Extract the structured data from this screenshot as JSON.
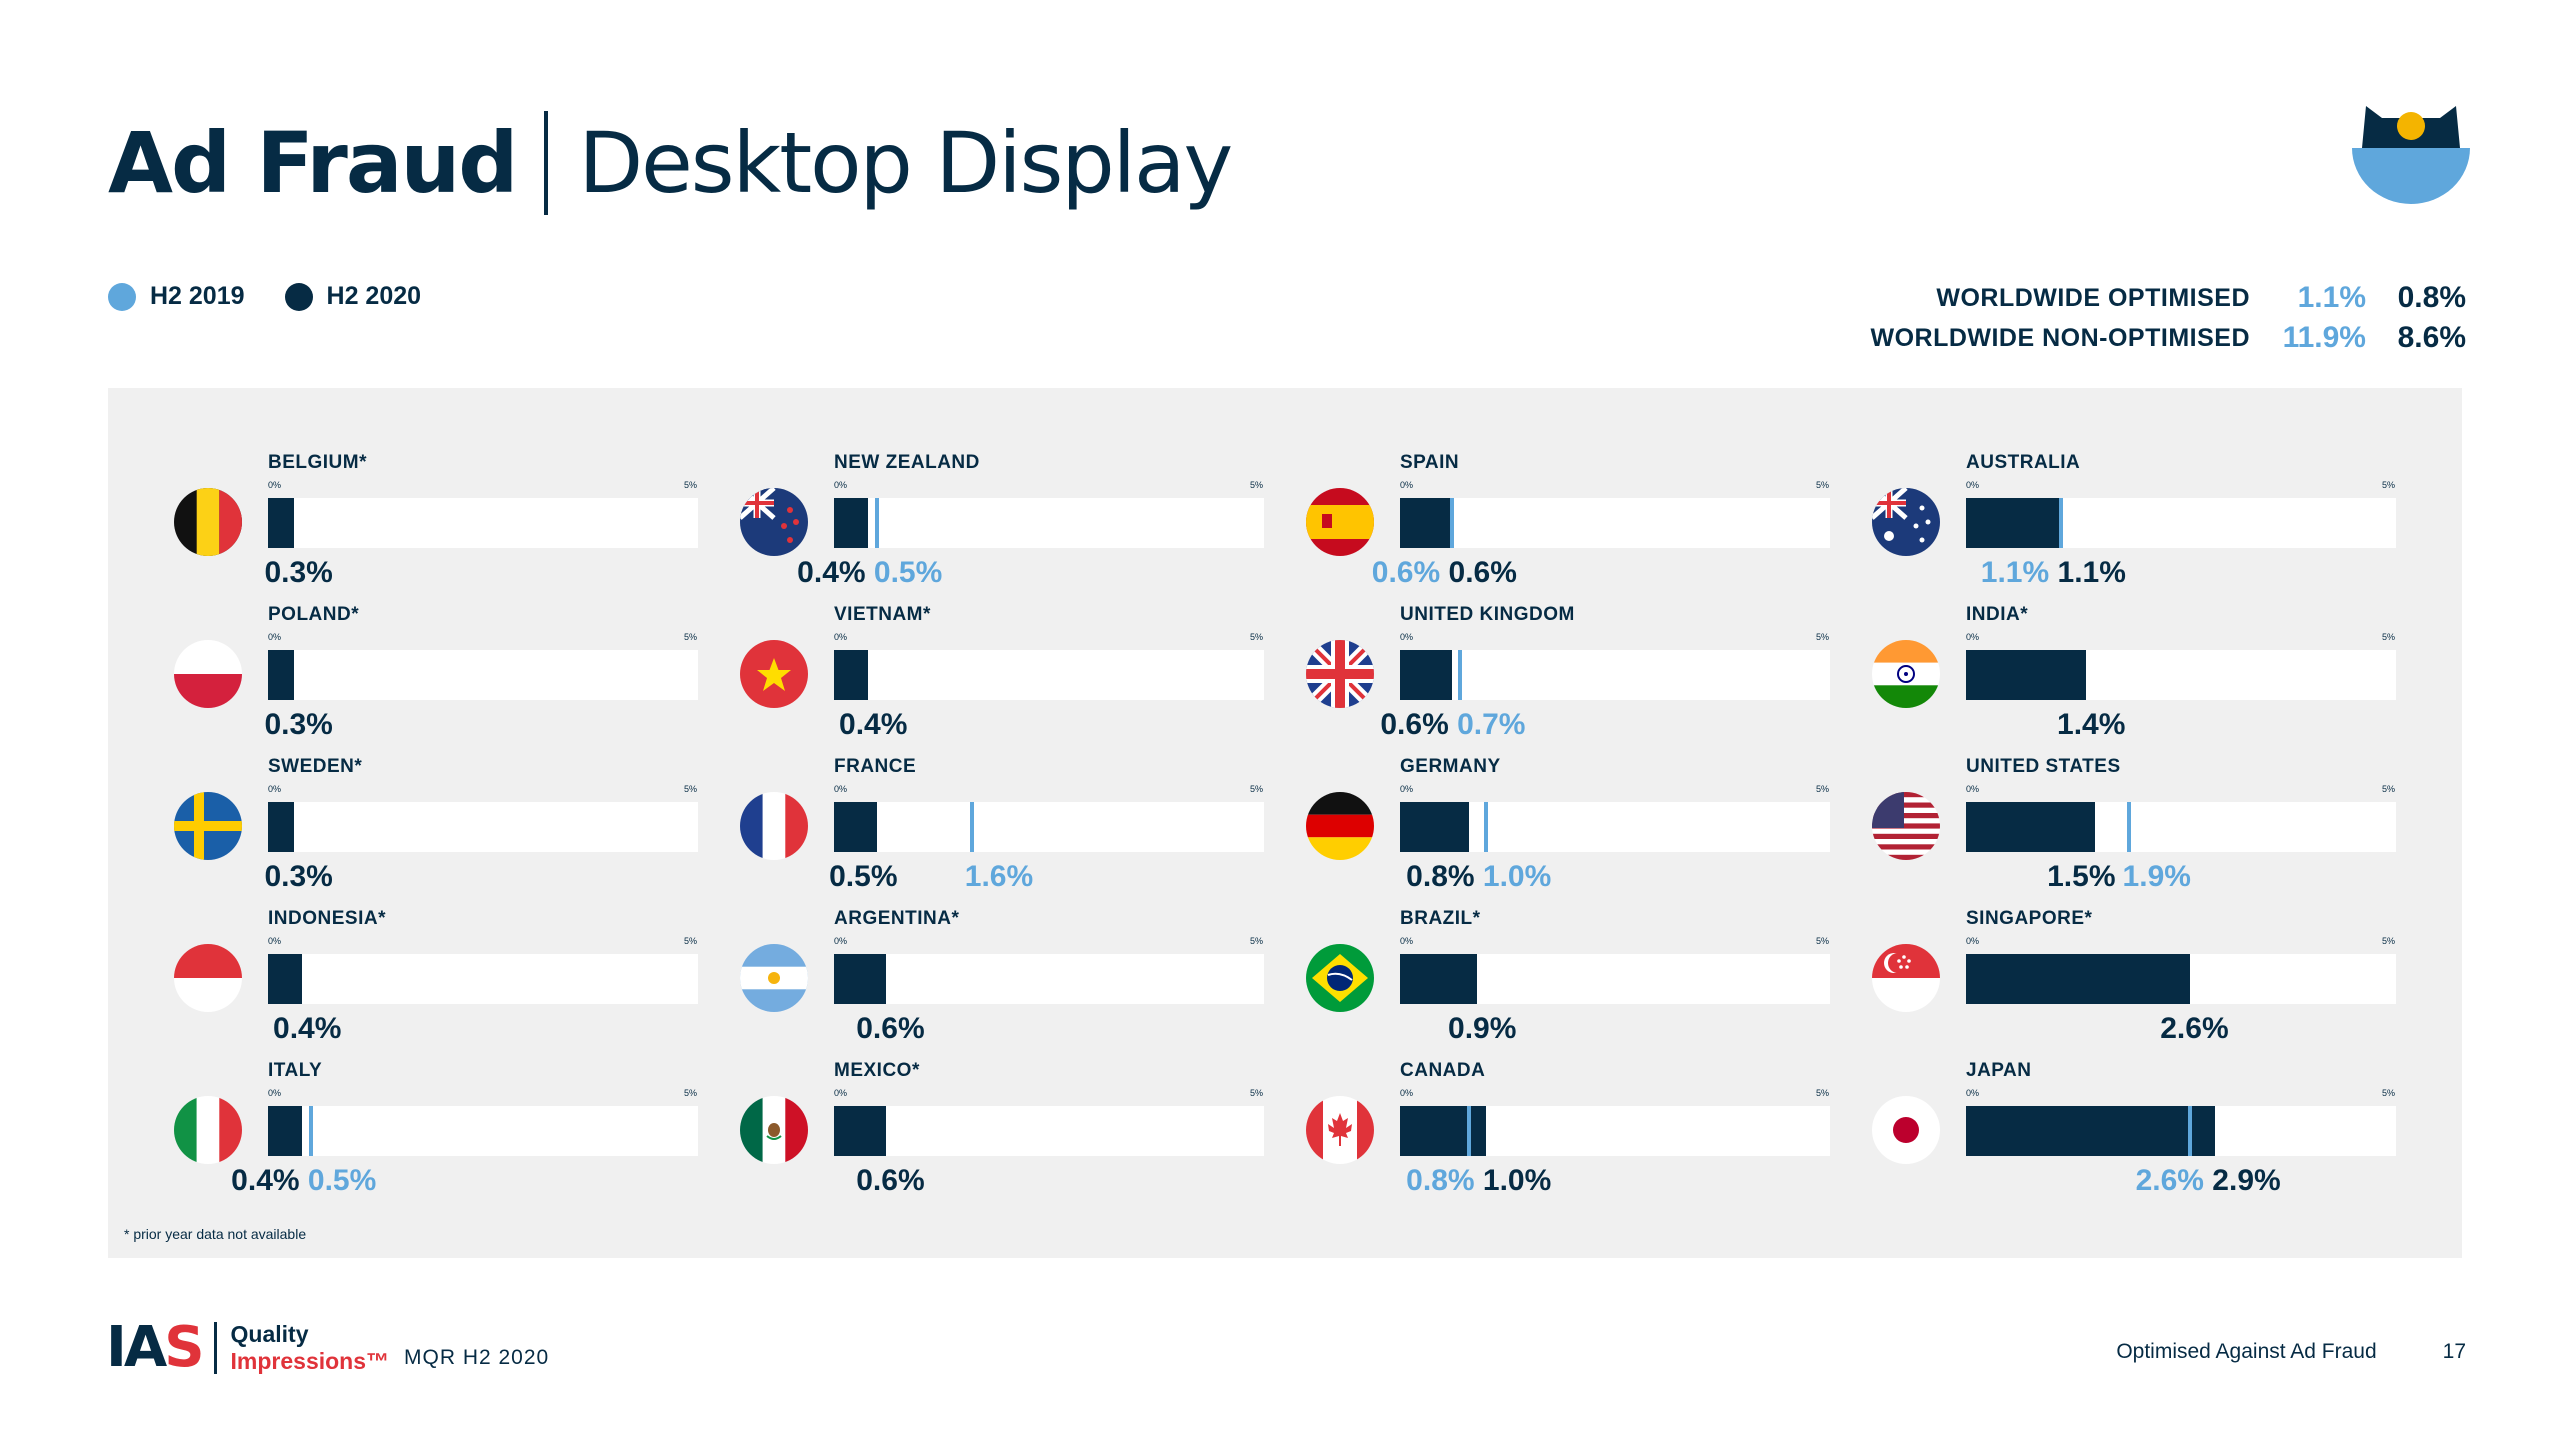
{
  "header": {
    "title_main": "Ad Fraud",
    "title_sub": "Desktop Display"
  },
  "legend": [
    {
      "label": "H2 2019",
      "color": "#5fa7dc"
    },
    {
      "label": "H2 2020",
      "color": "#062b44"
    }
  ],
  "worldwide": [
    {
      "label": "WORLDWIDE OPTIMISED",
      "h2_2019": "1.1%",
      "h2_2020": "0.8%"
    },
    {
      "label": "WORLDWIDE NON-OPTIMISED",
      "h2_2019": "11.9%",
      "h2_2020": "8.6%"
    }
  ],
  "colors": {
    "h2_2019": "#5fa7dc",
    "h2_2020": "#062b44",
    "accent": "#e0333a",
    "panel": "#f0f0f0"
  },
  "chart_data": {
    "type": "bar",
    "axis_min_label": "0%",
    "axis_max_label": "5%",
    "xlim": [
      0,
      5
    ],
    "series": [
      {
        "name": "H2 2019",
        "color": "#5fa7dc"
      },
      {
        "name": "H2 2020",
        "color": "#062b44"
      }
    ],
    "countries": [
      {
        "name": "BELGIUM*",
        "flag": "belgium-flag-icon",
        "h2_2020": 0.3,
        "h2_2019": null,
        "label_2020": "0.3%",
        "label_2019": ""
      },
      {
        "name": "POLAND*",
        "flag": "poland-flag-icon",
        "h2_2020": 0.3,
        "h2_2019": null,
        "label_2020": "0.3%",
        "label_2019": ""
      },
      {
        "name": "SWEDEN*",
        "flag": "sweden-flag-icon",
        "h2_2020": 0.3,
        "h2_2019": null,
        "label_2020": "0.3%",
        "label_2019": ""
      },
      {
        "name": "INDONESIA*",
        "flag": "indonesia-flag-icon",
        "h2_2020": 0.4,
        "h2_2019": null,
        "label_2020": "0.4%",
        "label_2019": ""
      },
      {
        "name": "ITALY",
        "flag": "italy-flag-icon",
        "h2_2020": 0.4,
        "h2_2019": 0.5,
        "label_2020": "0.4%",
        "label_2019": "0.5%"
      },
      {
        "name": "NEW ZEALAND",
        "flag": "new-zealand-flag-icon",
        "h2_2020": 0.4,
        "h2_2019": 0.5,
        "label_2020": "0.4%",
        "label_2019": "0.5%"
      },
      {
        "name": "VIETNAM*",
        "flag": "vietnam-flag-icon",
        "h2_2020": 0.4,
        "h2_2019": null,
        "label_2020": "0.4%",
        "label_2019": ""
      },
      {
        "name": "FRANCE",
        "flag": "france-flag-icon",
        "h2_2020": 0.5,
        "h2_2019": 1.6,
        "label_2020": "0.5%",
        "label_2019": "1.6%"
      },
      {
        "name": "ARGENTINA*",
        "flag": "argentina-flag-icon",
        "h2_2020": 0.6,
        "h2_2019": null,
        "label_2020": "0.6%",
        "label_2019": ""
      },
      {
        "name": "MEXICO*",
        "flag": "mexico-flag-icon",
        "h2_2020": 0.6,
        "h2_2019": null,
        "label_2020": "0.6%",
        "label_2019": ""
      },
      {
        "name": "SPAIN",
        "flag": "spain-flag-icon",
        "h2_2020": 0.6,
        "h2_2019": 0.6,
        "label_2020": "0.6%",
        "label_2019": "0.6%"
      },
      {
        "name": "UNITED KINGDOM",
        "flag": "united-kingdom-flag-icon",
        "h2_2020": 0.6,
        "h2_2019": 0.7,
        "label_2020": "0.6%",
        "label_2019": "0.7%"
      },
      {
        "name": "GERMANY",
        "flag": "germany-flag-icon",
        "h2_2020": 0.8,
        "h2_2019": 1.0,
        "label_2020": "0.8%",
        "label_2019": "1.0%"
      },
      {
        "name": "BRAZIL*",
        "flag": "brazil-flag-icon",
        "h2_2020": 0.9,
        "h2_2019": null,
        "label_2020": "0.9%",
        "label_2019": ""
      },
      {
        "name": "CANADA",
        "flag": "canada-flag-icon",
        "h2_2020": 1.0,
        "h2_2019": 0.8,
        "label_2020": "1.0%",
        "label_2019": "0.8%"
      },
      {
        "name": "AUSTRALIA",
        "flag": "australia-flag-icon",
        "h2_2020": 1.1,
        "h2_2019": 1.1,
        "label_2020": "1.1%",
        "label_2019": "1.1%"
      },
      {
        "name": "INDIA*",
        "flag": "india-flag-icon",
        "h2_2020": 1.4,
        "h2_2019": null,
        "label_2020": "1.4%",
        "label_2019": ""
      },
      {
        "name": "UNITED STATES",
        "flag": "united-states-flag-icon",
        "h2_2020": 1.5,
        "h2_2019": 1.9,
        "label_2020": "1.5%",
        "label_2019": "1.9%"
      },
      {
        "name": "SINGAPORE*",
        "flag": "singapore-flag-icon",
        "h2_2020": 2.6,
        "h2_2019": null,
        "label_2020": "2.6%",
        "label_2019": ""
      },
      {
        "name": "JAPAN",
        "flag": "japan-flag-icon",
        "h2_2020": 2.9,
        "h2_2019": 2.6,
        "label_2020": "2.9%",
        "label_2019": "2.6%"
      }
    ]
  },
  "footnote": "* prior year data not available",
  "footer": {
    "logo_text": "IAS",
    "logo_line1": "Quality",
    "logo_line2": "Impressions™",
    "report": "MQR H2 2020",
    "section": "Optimised Against Ad Fraud",
    "page": "17"
  }
}
